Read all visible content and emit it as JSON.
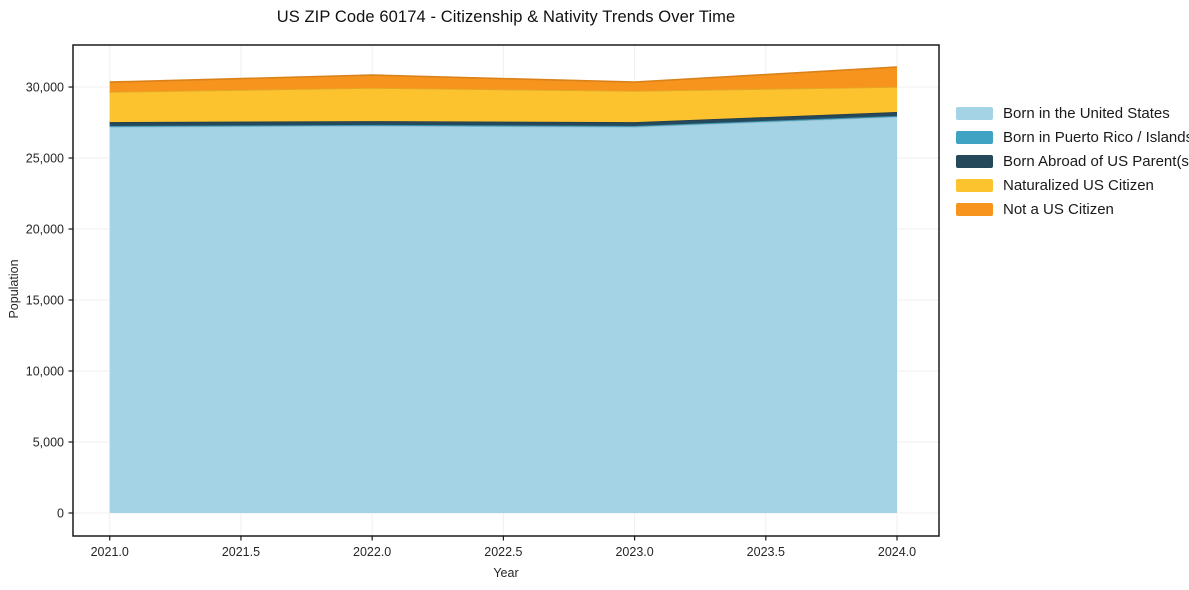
{
  "chart_data": {
    "type": "area",
    "stacked": true,
    "title": "US ZIP Code 60174 - Citizenship & Nativity Trends Over Time",
    "xlabel": "Year",
    "ylabel": "Population",
    "x": [
      2021,
      2022,
      2023,
      2024
    ],
    "series": [
      {
        "name": "Born in the United States",
        "color": "#a4d3e6",
        "values": [
          27200,
          27270,
          27200,
          27910
        ]
      },
      {
        "name": "Born in Puerto Rico / Islands",
        "color": "#3fa4c3",
        "values": [
          60,
          60,
          60,
          60
        ]
      },
      {
        "name": "Born Abroad of US Parent(s)",
        "color": "#25485a",
        "values": [
          270,
          270,
          270,
          270
        ]
      },
      {
        "name": "Naturalized US Citizen",
        "color": "#fdc32f",
        "values": [
          2120,
          2330,
          2190,
          1760
        ]
      },
      {
        "name": "Not a US Citizen",
        "color": "#f7941e",
        "values": [
          700,
          910,
          630,
          1410
        ]
      }
    ],
    "xlim": [
      2020.86,
      2024.16
    ],
    "ylim": [
      -1620,
      32960
    ],
    "x_ticks": [
      2021.0,
      2021.5,
      2022.0,
      2022.5,
      2023.0,
      2023.5,
      2024.0
    ],
    "x_tick_labels": [
      "2021.0",
      "2021.5",
      "2022.0",
      "2022.5",
      "2023.0",
      "2023.5",
      "2024.0"
    ],
    "y_ticks": [
      0,
      5000,
      10000,
      15000,
      20000,
      25000,
      30000
    ],
    "y_tick_labels": [
      "0",
      "5,000",
      "10,000",
      "15,000",
      "20,000",
      "25,000",
      "30,000"
    ],
    "grid": true,
    "legend_position": "right",
    "colors": {
      "frame": "#1a1a1a",
      "grid": "#efefef",
      "tick_text": "#262626",
      "background": "#ffffff"
    }
  }
}
